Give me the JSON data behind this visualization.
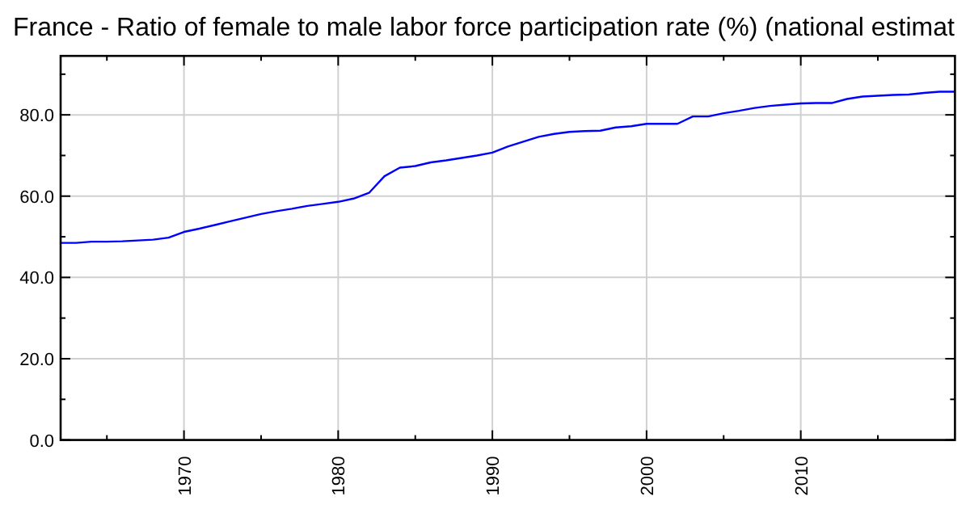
{
  "chart_data": {
    "type": "line",
    "title": "France - Ratio of female to male labor force participation rate (%) (national estimat",
    "x": [
      1962,
      1963,
      1964,
      1965,
      1966,
      1967,
      1968,
      1969,
      1970,
      1971,
      1972,
      1973,
      1974,
      1975,
      1976,
      1977,
      1978,
      1979,
      1980,
      1981,
      1982,
      1983,
      1984,
      1985,
      1986,
      1987,
      1988,
      1989,
      1990,
      1991,
      1992,
      1993,
      1994,
      1995,
      1996,
      1997,
      1998,
      1999,
      2000,
      2001,
      2002,
      2003,
      2004,
      2005,
      2006,
      2007,
      2008,
      2009,
      2010,
      2011,
      2012,
      2013,
      2014,
      2015,
      2016,
      2017,
      2018,
      2019,
      2020
    ],
    "series": [
      {
        "color": "#0000ff",
        "values": [
          48.5,
          48.5,
          48.8,
          48.8,
          48.9,
          49.1,
          49.3,
          49.8,
          51.2,
          52.0,
          52.9,
          53.8,
          54.7,
          55.6,
          56.3,
          56.9,
          57.6,
          58.1,
          58.6,
          59.4,
          60.8,
          64.9,
          67.0,
          67.4,
          68.3,
          68.8,
          69.4,
          70.0,
          70.7,
          72.2,
          73.4,
          74.6,
          75.3,
          75.8,
          76.0,
          76.1,
          76.9,
          77.2,
          77.8,
          77.8,
          77.8,
          79.6,
          79.6,
          80.4,
          81.0,
          81.7,
          82.2,
          82.5,
          82.8,
          82.9,
          82.9,
          83.9,
          84.5,
          84.7,
          84.9,
          85.0,
          85.4,
          85.7,
          85.7
        ]
      }
    ],
    "xlim": [
      1962,
      2020
    ],
    "xticks": [
      {
        "value": 1965,
        "label": null
      },
      1970,
      {
        "value": 1975,
        "label": null
      },
      1980,
      {
        "value": 1985,
        "label": null
      },
      1990,
      {
        "value": 1995,
        "label": null
      },
      2000,
      {
        "value": 2005,
        "label": null
      },
      2010,
      {
        "value": 2015,
        "label": null
      }
    ],
    "ylim": [
      0,
      94.5
    ],
    "yticks": [
      {
        "value": 0,
        "label": "0.0"
      },
      {
        "value": 10,
        "label": null
      },
      {
        "value": 20,
        "label": "20.0"
      },
      {
        "value": 30,
        "label": null
      },
      {
        "value": 40,
        "label": "40.0"
      },
      {
        "value": 50,
        "label": null
      },
      {
        "value": 60,
        "label": "60.0"
      },
      {
        "value": 70,
        "label": null
      },
      {
        "value": 80,
        "label": "80.0"
      },
      {
        "value": 90,
        "label": null
      }
    ],
    "grid": true,
    "marker": "none",
    "line_style": "solid"
  }
}
